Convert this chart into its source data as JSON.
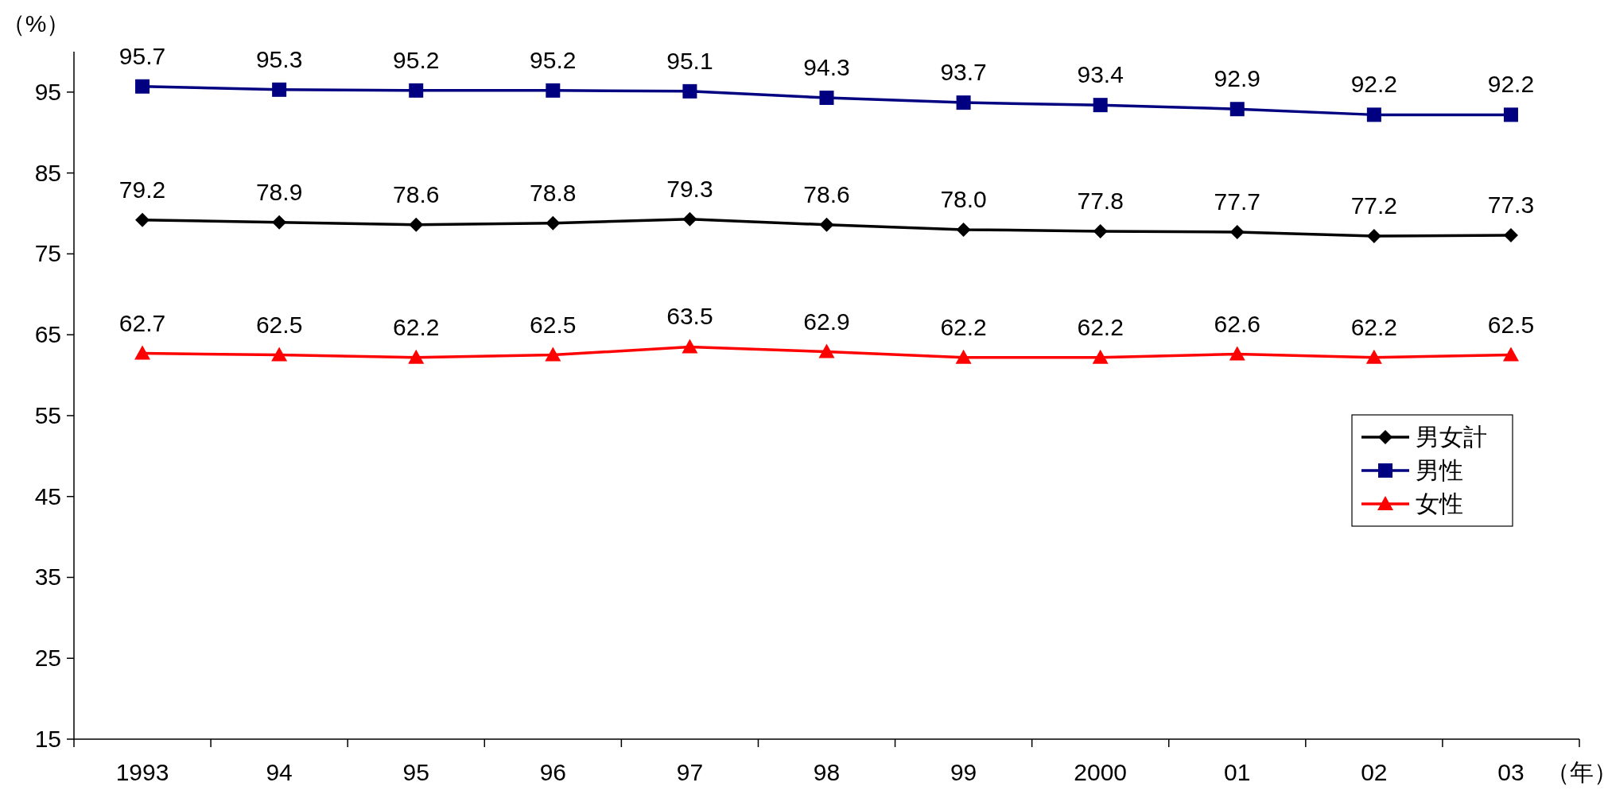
{
  "chart_data": {
    "type": "line",
    "ylabel": "（%）",
    "xlabel": "（年）",
    "categories": [
      "1993",
      "94",
      "95",
      "96",
      "97",
      "98",
      "99",
      "2000",
      "01",
      "02",
      "03"
    ],
    "series": [
      {
        "name": "男女計",
        "color": "#000000",
        "marker": "diamond",
        "values": [
          79.2,
          78.9,
          78.6,
          78.8,
          79.3,
          78.6,
          78.0,
          77.8,
          77.7,
          77.2,
          77.3
        ],
        "value_labels": [
          "79.2",
          "78.9",
          "78.6",
          "78.8",
          "79.3",
          "78.6",
          "78.0",
          "77.8",
          "77.7",
          "77.2",
          "77.3"
        ]
      },
      {
        "name": "男性",
        "color": "#000080",
        "marker": "square",
        "values": [
          95.7,
          95.3,
          95.2,
          95.2,
          95.1,
          94.3,
          93.7,
          93.4,
          92.9,
          92.2,
          92.2
        ],
        "value_labels": [
          "95.7",
          "95.3",
          "95.2",
          "95.2",
          "95.1",
          "94.3",
          "93.7",
          "93.4",
          "92.9",
          "92.2",
          "92.2"
        ]
      },
      {
        "name": "女性",
        "color": "#ff0000",
        "marker": "triangle",
        "values": [
          62.7,
          62.5,
          62.2,
          62.5,
          63.5,
          62.9,
          62.2,
          62.2,
          62.6,
          62.2,
          62.5
        ],
        "value_labels": [
          "62.7",
          "62.5",
          "62.2",
          "62.5",
          "63.5",
          "62.9",
          "62.2",
          "62.2",
          "62.6",
          "62.2",
          "62.5"
        ]
      }
    ],
    "ylim": [
      15,
      100
    ],
    "yticks": [
      15,
      25,
      35,
      45,
      55,
      65,
      75,
      85,
      95
    ],
    "legend": "right"
  }
}
